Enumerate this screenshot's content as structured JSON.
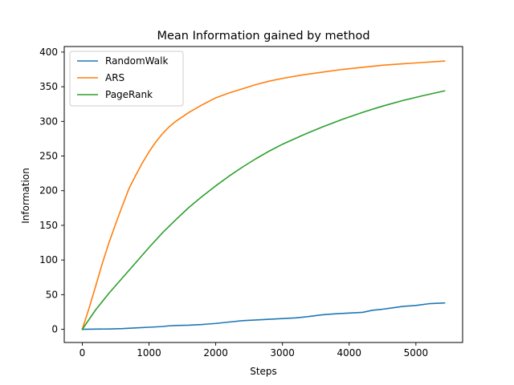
{
  "chart_data": {
    "type": "line",
    "title": "Mean Information gained by method",
    "xlabel": "Steps",
    "ylabel": "Information",
    "xlim": [
      -270,
      5700
    ],
    "ylim": [
      -19,
      408
    ],
    "xticks": [
      0,
      1000,
      2000,
      3000,
      4000,
      5000
    ],
    "yticks": [
      0,
      50,
      100,
      150,
      200,
      250,
      300,
      350,
      400
    ],
    "grid": false,
    "legend_position": "top-left",
    "series": [
      {
        "name": "RandomWalk",
        "color": "#1f77b4",
        "x": [
          0,
          200,
          400,
          600,
          800,
          1000,
          1200,
          1300,
          1400,
          1600,
          1800,
          2000,
          2200,
          2400,
          2600,
          2800,
          3000,
          3200,
          3400,
          3600,
          3800,
          4000,
          4200,
          4350,
          4500,
          4650,
          4800,
          5000,
          5200,
          5430
        ],
        "y": [
          0,
          0.3,
          0.5,
          1,
          2,
          3,
          4,
          5,
          5.5,
          6,
          7,
          8.5,
          10.5,
          12.5,
          13.5,
          14.5,
          15.5,
          16.5,
          18.5,
          21,
          22.5,
          23.5,
          24.5,
          27.5,
          29,
          31,
          33,
          34.5,
          37,
          38
        ]
      },
      {
        "name": "ARS",
        "color": "#ff7f0e",
        "x": [
          0,
          100,
          200,
          300,
          400,
          500,
          600,
          700,
          800,
          900,
          1000,
          1100,
          1200,
          1300,
          1400,
          1600,
          1800,
          2000,
          2200,
          2400,
          2600,
          2800,
          3000,
          3300,
          3600,
          3900,
          4200,
          4500,
          4800,
          5100,
          5430
        ],
        "y": [
          0,
          30,
          62,
          95,
          125,
          152,
          178,
          203,
          222,
          240,
          256,
          270,
          282,
          292,
          300,
          313,
          324,
          334,
          341,
          347,
          353,
          358,
          362,
          367,
          371,
          375,
          378,
          381,
          383,
          385,
          387
        ]
      },
      {
        "name": "PageRank",
        "color": "#2ca02c",
        "x": [
          0,
          200,
          400,
          600,
          800,
          1000,
          1200,
          1400,
          1600,
          1800,
          2000,
          2200,
          2400,
          2600,
          2800,
          3000,
          3300,
          3600,
          3900,
          4200,
          4500,
          4800,
          5100,
          5430
        ],
        "y": [
          0,
          28,
          52,
          74,
          96,
          118,
          139,
          158,
          176,
          192,
          207,
          221,
          234,
          246,
          257,
          267,
          280,
          292,
          303,
          313,
          322,
          330,
          337,
          344
        ]
      }
    ]
  }
}
